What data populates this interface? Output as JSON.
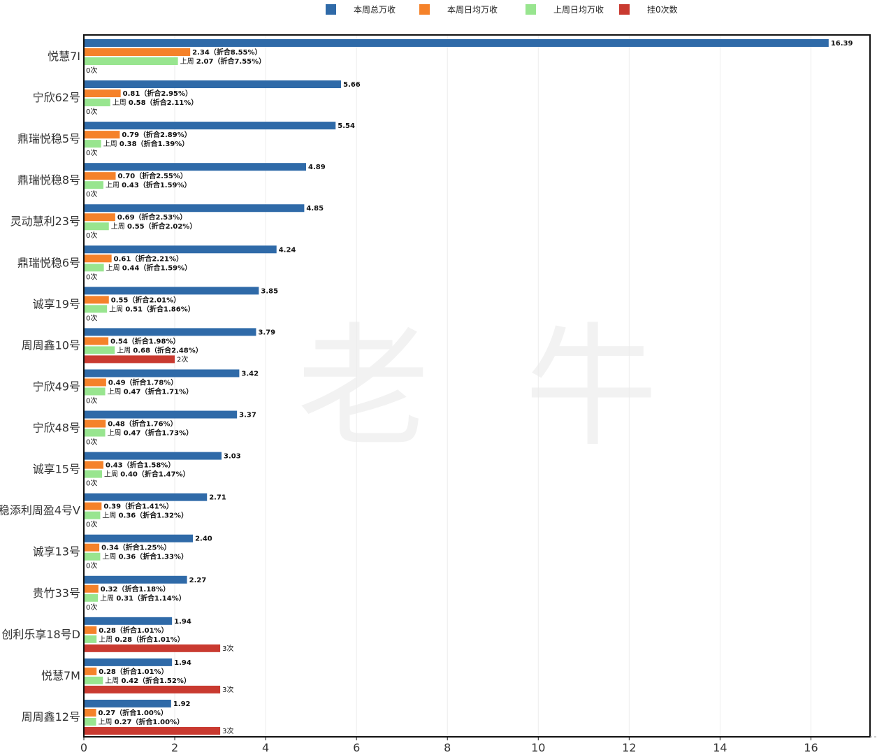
{
  "chart_data": {
    "type": "bar",
    "orientation": "horizontal",
    "watermark": [
      "老",
      "牛"
    ],
    "xlim": [
      0,
      17.3
    ],
    "xticks": [
      0,
      2,
      4,
      6,
      8,
      10,
      12,
      14,
      16
    ],
    "grid": true,
    "legend_position": "top",
    "series": [
      {
        "name": "本周总万收",
        "color": "#2f6aa8"
      },
      {
        "name": "本周日均万收",
        "color": "#f5822a"
      },
      {
        "name": "上周日均万收",
        "color": "#98e58f"
      },
      {
        "name": "挂0次数",
        "color": "#c93a30"
      }
    ],
    "categories": [
      "悦慧7I",
      "宁欣62号",
      "鼎瑞悦稳5号",
      "鼎瑞悦稳8号",
      "灵动慧利23号",
      "鼎瑞悦稳6号",
      "诚享19号",
      "周周鑫10号",
      "宁欣49号",
      "宁欣48号",
      "诚享15号",
      "稳添利周盈4号V",
      "诚享13号",
      "贵竹33号",
      "创利乐享18号D",
      "悦慧7M",
      "周周鑫12号"
    ],
    "rows": [
      {
        "total": 16.39,
        "total_label": "16.39",
        "daily": 2.34,
        "daily_label": "2.34（折合8.55%）",
        "last": 2.07,
        "last_prefix": "上周 ",
        "last_label": "2.07（折合7.55%）",
        "zero": 0,
        "zero_label": "0次"
      },
      {
        "total": 5.66,
        "total_label": "5.66",
        "daily": 0.81,
        "daily_label": "0.81（折合2.95%）",
        "last": 0.58,
        "last_prefix": "上周 ",
        "last_label": "0.58（折合2.11%）",
        "zero": 0,
        "zero_label": "0次"
      },
      {
        "total": 5.54,
        "total_label": "5.54",
        "daily": 0.79,
        "daily_label": "0.79（折合2.89%）",
        "last": 0.38,
        "last_prefix": "上周 ",
        "last_label": "0.38（折合1.39%）",
        "zero": 0,
        "zero_label": "0次"
      },
      {
        "total": 4.89,
        "total_label": "4.89",
        "daily": 0.7,
        "daily_label": "0.70（折合2.55%）",
        "last": 0.43,
        "last_prefix": "上周 ",
        "last_label": "0.43（折合1.59%）",
        "zero": 0,
        "zero_label": "0次"
      },
      {
        "total": 4.85,
        "total_label": "4.85",
        "daily": 0.69,
        "daily_label": "0.69（折合2.53%）",
        "last": 0.55,
        "last_prefix": "上周 ",
        "last_label": "0.55（折合2.02%）",
        "zero": 0,
        "zero_label": "0次"
      },
      {
        "total": 4.24,
        "total_label": "4.24",
        "daily": 0.61,
        "daily_label": "0.61（折合2.21%）",
        "last": 0.44,
        "last_prefix": "上周 ",
        "last_label": "0.44（折合1.59%）",
        "zero": 0,
        "zero_label": "0次"
      },
      {
        "total": 3.85,
        "total_label": "3.85",
        "daily": 0.55,
        "daily_label": "0.55（折合2.01%）",
        "last": 0.51,
        "last_prefix": "上周 ",
        "last_label": "0.51（折合1.86%）",
        "zero": 0,
        "zero_label": "0次"
      },
      {
        "total": 3.79,
        "total_label": "3.79",
        "daily": 0.54,
        "daily_label": "0.54（折合1.98%）",
        "last": 0.68,
        "last_prefix": "上周 ",
        "last_label": "0.68（折合2.48%）",
        "zero": 2,
        "zero_label": "2次"
      },
      {
        "total": 3.42,
        "total_label": "3.42",
        "daily": 0.49,
        "daily_label": "0.49（折合1.78%）",
        "last": 0.47,
        "last_prefix": "上周 ",
        "last_label": "0.47（折合1.71%）",
        "zero": 0,
        "zero_label": "0次"
      },
      {
        "total": 3.37,
        "total_label": "3.37",
        "daily": 0.48,
        "daily_label": "0.48（折合1.76%）",
        "last": 0.47,
        "last_prefix": "上周 ",
        "last_label": "0.47（折合1.73%）",
        "zero": 0,
        "zero_label": "0次"
      },
      {
        "total": 3.03,
        "total_label": "3.03",
        "daily": 0.43,
        "daily_label": "0.43（折合1.58%）",
        "last": 0.4,
        "last_prefix": "上周 ",
        "last_label": "0.40（折合1.47%）",
        "zero": 0,
        "zero_label": "0次"
      },
      {
        "total": 2.71,
        "total_label": "2.71",
        "daily": 0.39,
        "daily_label": "0.39（折合1.41%）",
        "last": 0.36,
        "last_prefix": "上周 ",
        "last_label": "0.36（折合1.32%）",
        "zero": 0,
        "zero_label": "0次"
      },
      {
        "total": 2.4,
        "total_label": "2.40",
        "daily": 0.34,
        "daily_label": "0.34（折合1.25%）",
        "last": 0.36,
        "last_prefix": "上周 ",
        "last_label": "0.36（折合1.33%）",
        "zero": 0,
        "zero_label": "0次"
      },
      {
        "total": 2.27,
        "total_label": "2.27",
        "daily": 0.32,
        "daily_label": "0.32（折合1.18%）",
        "last": 0.31,
        "last_prefix": "上周 ",
        "last_label": "0.31（折合1.14%）",
        "zero": 0,
        "zero_label": "0次"
      },
      {
        "total": 1.94,
        "total_label": "1.94",
        "daily": 0.28,
        "daily_label": "0.28（折合1.01%）",
        "last": 0.28,
        "last_prefix": "上周 ",
        "last_label": "0.28（折合1.01%）",
        "zero": 3,
        "zero_label": "3次"
      },
      {
        "total": 1.94,
        "total_label": "1.94",
        "daily": 0.28,
        "daily_label": "0.28（折合1.01%）",
        "last": 0.42,
        "last_prefix": "上周 ",
        "last_label": "0.42（折合1.52%）",
        "zero": 3,
        "zero_label": "3次"
      },
      {
        "total": 1.92,
        "total_label": "1.92",
        "daily": 0.27,
        "daily_label": "0.27（折合1.00%）",
        "last": 0.27,
        "last_prefix": "上周 ",
        "last_label": "0.27（折合1.00%）",
        "zero": 3,
        "zero_label": "3次"
      }
    ]
  }
}
